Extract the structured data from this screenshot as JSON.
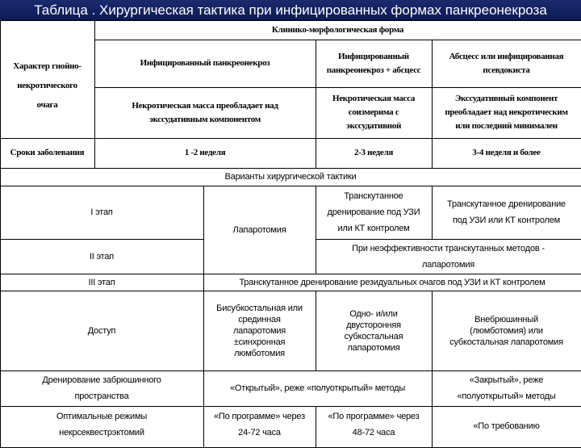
{
  "title": "Таблица . Хирургическая тактика при инфицированных формах панкреонекроза",
  "header": {
    "row_label": "Характер гнойно-\nнекротического\nочага",
    "group": "Клинико-морфологическая форма",
    "forms": [
      "Инфицированный панкреонекроз",
      "Инфицированный\nпанкреонекроз + абсцесс",
      "Абсцесс или инфицированная\nпсевдокиста"
    ],
    "character": [
      "Некротическая масса преобладает над\nэкссудативным компонентом",
      "Некротическая масса\nсоизмерима с\nэкссудативной",
      "Экссудативный компонент\nпреобладает над некротическим\nили последний минимален"
    ],
    "terms_label": "Сроки заболевания",
    "terms": [
      "1 -2 неделя",
      "2-3 неделя",
      "3-4 неделя и более"
    ]
  },
  "tactics": {
    "title": "Варианты хирургической тактики",
    "stage1": "I этап",
    "stage2": "II этап",
    "stage3": "III этап",
    "laparotomy": "Лапаротомия",
    "stage1_col3": "Транскутанное\nдренирование под УЗИ\nили КТ контролем",
    "stage1_col4": "Транскутанное дренирование\nпод УЗИ или КТ контролем",
    "stage2_text": "При неэффективности транскутанных методов -\nлапаротомия",
    "stage3_text": "Транскутанное дренирование резидуальных очагов под УЗИ и КТ контролем",
    "access_label": "Доступ",
    "access": [
      "Бисубкостальная или\nсрединная\nлапаротомия\n±синхронная\nлюмботомия",
      "Одно- и/или\nдвусторонняя\nсубкостальная\nлапаротомия",
      "Внебрюшинный\n(люмботомия) или\nсубкостальная лапаротомия"
    ],
    "drainage_label": "Дренирование забрюшинного\nпространства",
    "drainage": [
      "«Открытый», реже «полуоткрытый» методы",
      "«Закрытый», реже\n«полуоткрытый» методы"
    ],
    "modes_label": "Оптимальные режимы\nнекрсеквестрэктомий",
    "modes": [
      "«По программе» через\n24-72 часа",
      "«По программе» через\n48-72 часа",
      "«По требованию"
    ]
  }
}
